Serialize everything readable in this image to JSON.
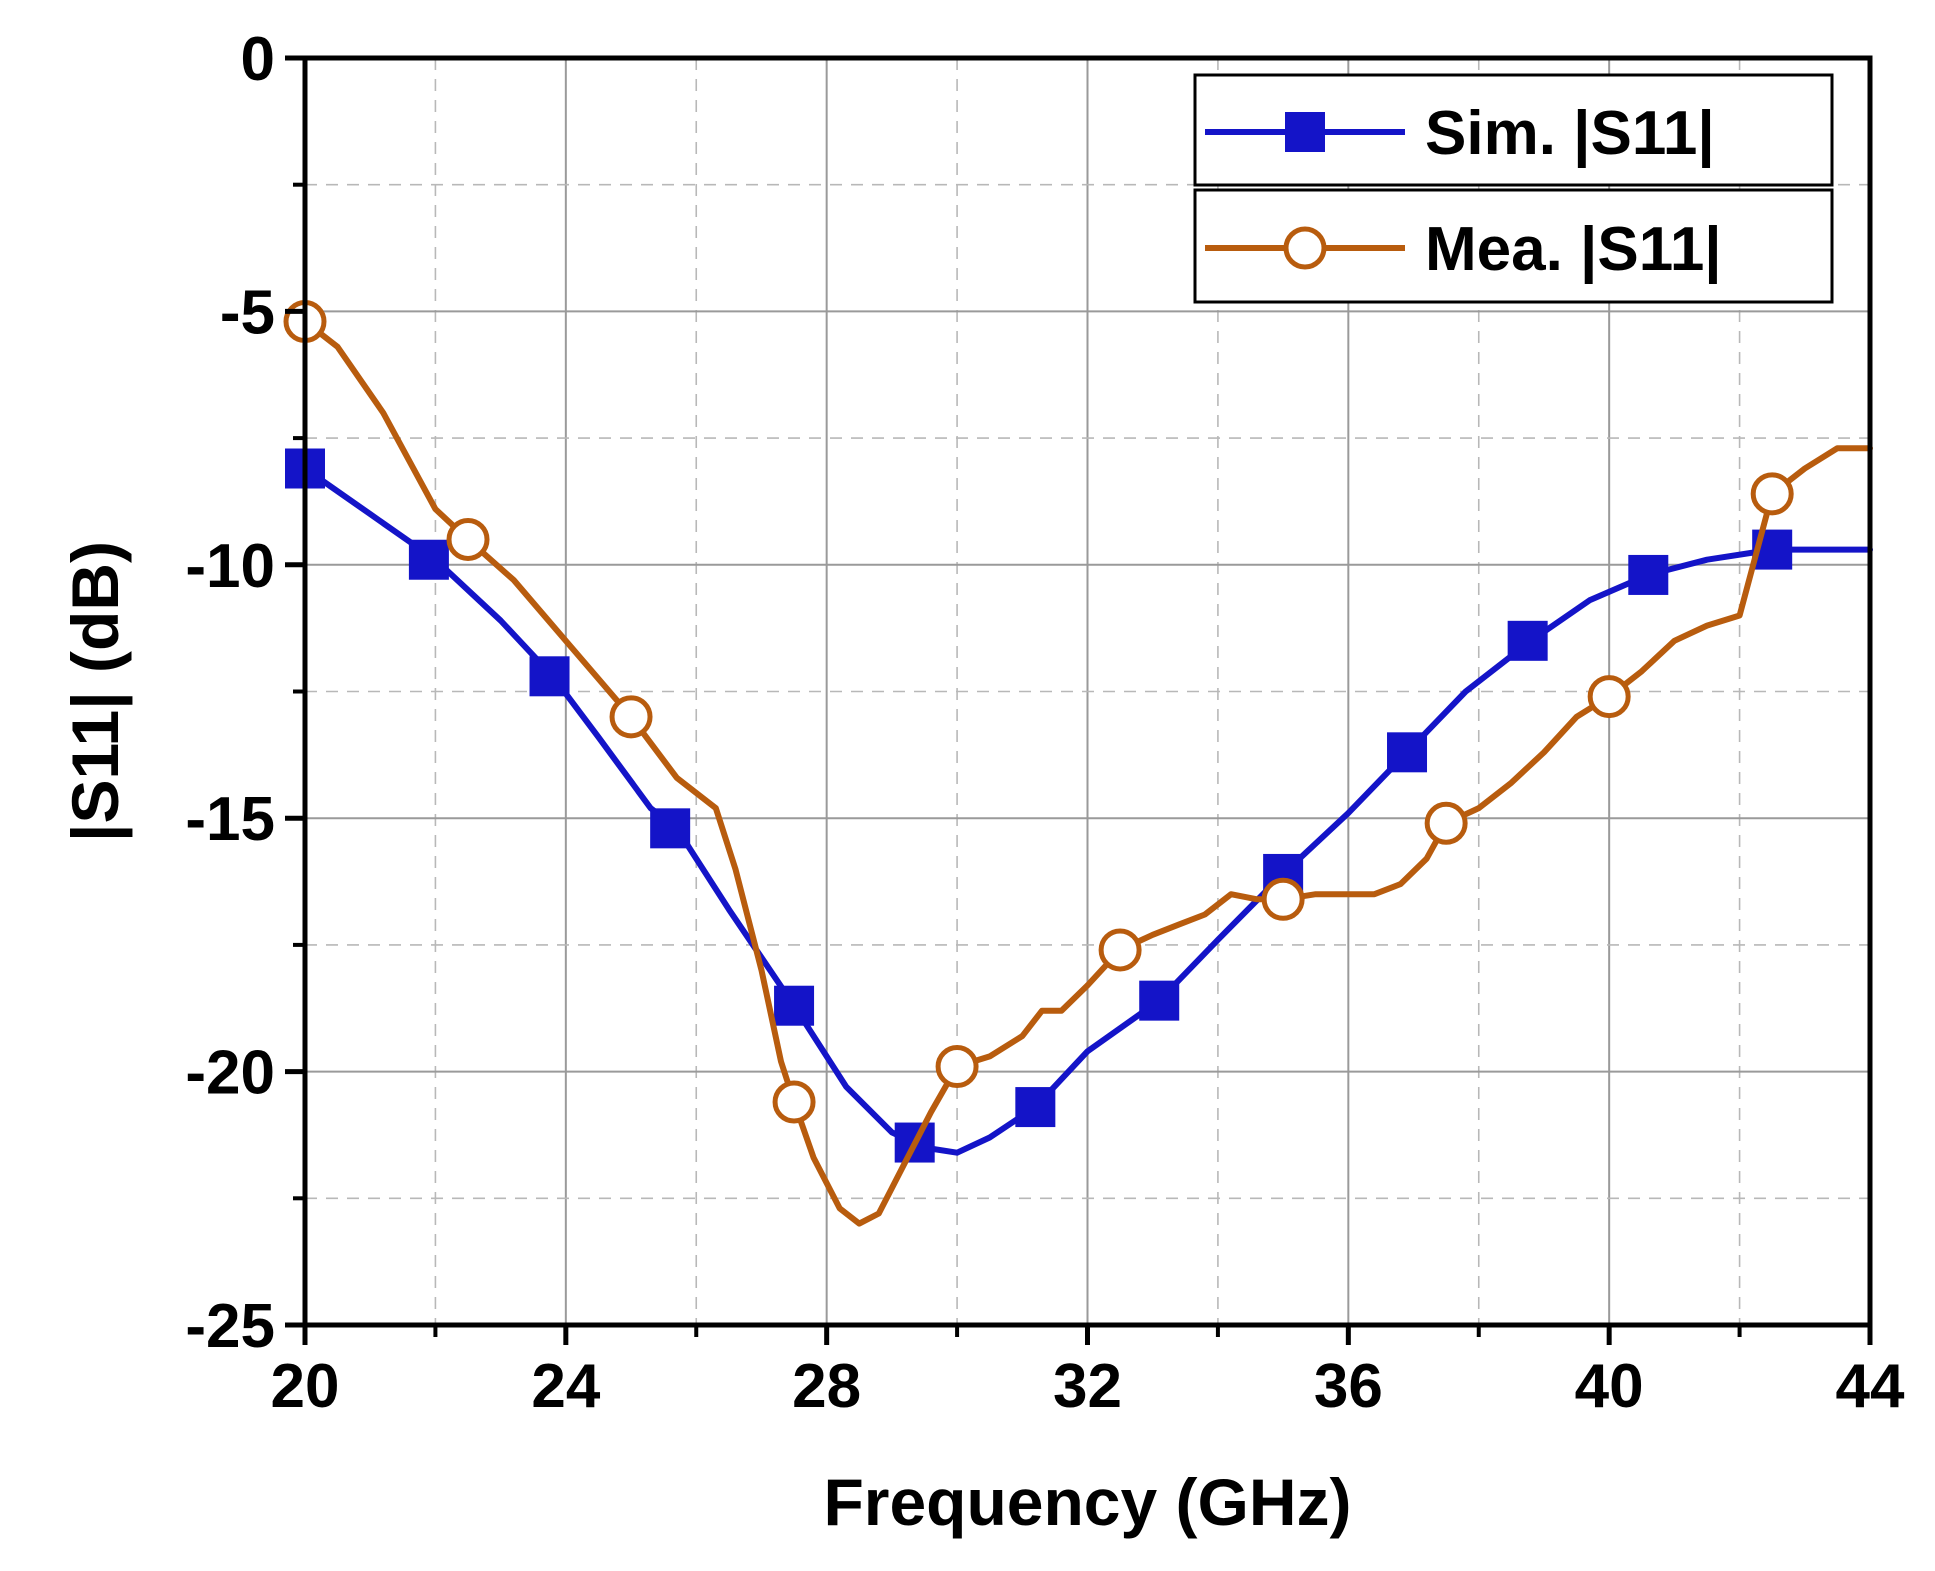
{
  "chart_data": {
    "type": "line",
    "title": "",
    "xlabel": "Frequency (GHz)",
    "ylabel": "|S11| (dB)",
    "xlim": [
      20,
      44
    ],
    "ylim": [
      -25,
      0
    ],
    "x_ticks": [
      20,
      24,
      28,
      32,
      36,
      40,
      44
    ],
    "x_tick_labels": [
      "20",
      "24",
      "28",
      "32",
      "36",
      "40",
      "44"
    ],
    "y_ticks": [
      0,
      -5,
      -10,
      -15,
      -20,
      -25
    ],
    "y_tick_labels": [
      "0",
      "-5",
      "-10",
      "-15",
      "-20",
      "-25"
    ],
    "grid": true,
    "legend_position": "top-right",
    "series": [
      {
        "name": "Sim. |S11|",
        "color": "#1414c8",
        "marker": "filled-square",
        "x": [
          20,
          21,
          22,
          23,
          23.8,
          24.5,
          25.3,
          25.7,
          26.5,
          27.5,
          28.3,
          29,
          29.5,
          30,
          30.5,
          31.2,
          32,
          33.1,
          34,
          35,
          36,
          36.9,
          37.8,
          38.8,
          39.7,
          40.6,
          41.5,
          42.5,
          43.2,
          44
        ],
        "y": [
          -8.1,
          -9.0,
          -9.9,
          -11.1,
          -12.2,
          -13.4,
          -14.8,
          -15.2,
          -16.8,
          -18.7,
          -20.3,
          -21.2,
          -21.5,
          -21.6,
          -21.3,
          -20.7,
          -19.6,
          -18.6,
          -17.4,
          -16.1,
          -14.9,
          -13.7,
          -12.5,
          -11.5,
          -10.7,
          -10.2,
          -9.9,
          -9.7,
          -9.7,
          -9.7
        ],
        "marker_x": [
          20,
          21.9,
          23.75,
          25.6,
          27.5,
          29.35,
          31.2,
          33.1,
          35.0,
          36.9,
          38.75,
          40.6,
          42.5
        ],
        "marker_y": [
          -8.1,
          -9.9,
          -12.2,
          -15.2,
          -18.7,
          -21.4,
          -20.7,
          -18.6,
          -16.1,
          -13.7,
          -11.5,
          -10.2,
          -9.7
        ]
      },
      {
        "name": "Mea. |S11|",
        "color": "#b85c0e",
        "marker": "open-circle",
        "x": [
          20,
          20.5,
          21.2,
          22,
          22.5,
          23.2,
          24,
          24.6,
          25,
          25.7,
          26.3,
          26.6,
          27,
          27.3,
          27.5,
          27.8,
          28.2,
          28.5,
          28.8,
          29.2,
          29.6,
          30,
          30.5,
          31,
          31.3,
          31.6,
          32,
          32.5,
          33,
          33.4,
          33.8,
          34.2,
          34.6,
          35,
          35.5,
          36,
          36.4,
          36.8,
          37.2,
          37.5,
          38,
          38.5,
          39,
          39.5,
          40,
          40.5,
          41,
          41.5,
          42,
          42.5,
          43,
          43.5,
          44
        ],
        "y": [
          -5.2,
          -5.7,
          -7.0,
          -8.9,
          -9.5,
          -10.3,
          -11.5,
          -12.4,
          -13.0,
          -14.2,
          -14.8,
          -16.0,
          -18.0,
          -19.8,
          -20.6,
          -21.7,
          -22.7,
          -23.0,
          -22.8,
          -21.8,
          -20.8,
          -19.9,
          -19.7,
          -19.3,
          -18.8,
          -18.8,
          -18.3,
          -17.6,
          -17.3,
          -17.1,
          -16.9,
          -16.5,
          -16.6,
          -16.6,
          -16.5,
          -16.5,
          -16.5,
          -16.3,
          -15.8,
          -15.1,
          -14.8,
          -14.3,
          -13.7,
          -13.0,
          -12.6,
          -12.1,
          -11.5,
          -11.2,
          -11.0,
          -8.6,
          -8.1,
          -7.7,
          -7.7
        ],
        "marker_x": [
          20,
          22.5,
          25,
          27.5,
          30,
          32.5,
          35,
          37.5,
          40,
          42.5
        ],
        "marker_y": [
          -5.2,
          -9.5,
          -13.0,
          -20.6,
          -19.9,
          -17.6,
          -16.6,
          -15.1,
          -12.6,
          -8.6
        ]
      }
    ]
  }
}
